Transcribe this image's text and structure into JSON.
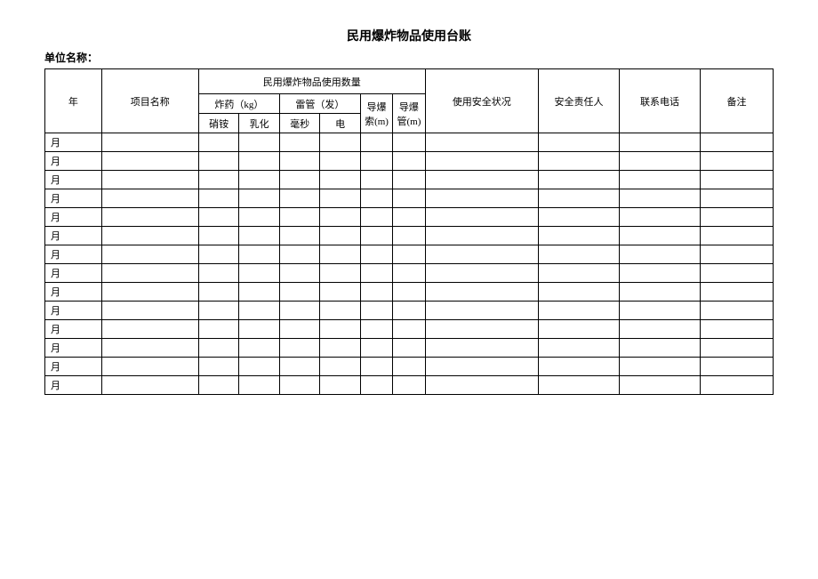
{
  "title": "民用爆炸物品使用台账",
  "unitLabel": "单位名称：",
  "header": {
    "year": "年",
    "project": "项目名称",
    "usageQty": "民用爆炸物品使用数量",
    "explosive": "炸药（kg）",
    "detonator": "雷管（发）",
    "fuse": "导爆索(m)",
    "tube": "导爆管(m)",
    "xiaoAn": "硝铵",
    "ruHua": "乳化",
    "haoMiao": "毫秒",
    "dian": "电",
    "safetyStatus": "使用安全状况",
    "safetyPerson": "安全责任人",
    "phone": "联系电话",
    "remark": "备注"
  },
  "rowLabel": "月",
  "rowCount": 14,
  "colors": {
    "border": "#000000",
    "bg": "#ffffff",
    "text": "#000000"
  },
  "fontSizes": {
    "title": 14,
    "label": 12,
    "cell": 11
  }
}
